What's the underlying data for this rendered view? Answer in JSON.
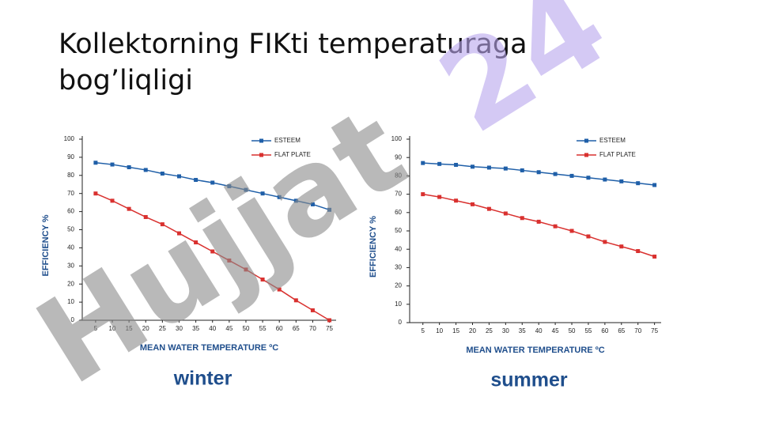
{
  "title_lines": [
    "Kollektorning FIKti temperaturaga",
    "bog’liqligi"
  ],
  "watermark": [
    "Hujjat",
    "24"
  ],
  "chart_data": [
    {
      "type": "line",
      "title": "winter",
      "xlabel": "MEAN WATER TEMPERATURE ºC",
      "ylabel": "EFFICIENCY %",
      "x": [
        5,
        10,
        15,
        20,
        25,
        30,
        35,
        40,
        45,
        50,
        55,
        60,
        65,
        70,
        75
      ],
      "series": [
        {
          "name": "ESTEEM",
          "color": "#1f5fa8",
          "values": [
            87,
            86,
            84.5,
            83,
            81,
            79.5,
            77.5,
            76,
            74,
            72,
            70,
            68,
            66,
            64,
            61
          ]
        },
        {
          "name": "FLAT PLATE",
          "color": "#d9312f",
          "values": [
            70,
            66,
            61.5,
            57,
            53,
            48,
            43,
            38,
            33,
            28,
            22.5,
            17,
            11,
            5.5,
            0
          ]
        }
      ],
      "xlim": [
        1,
        77
      ],
      "ylim": [
        0,
        100
      ],
      "xticks": [
        5,
        10,
        15,
        20,
        25,
        30,
        35,
        40,
        45,
        50,
        55,
        60,
        65,
        70,
        75
      ],
      "yticks": [
        0,
        10,
        20,
        30,
        40,
        50,
        60,
        70,
        80,
        90,
        100
      ],
      "grid": false
    },
    {
      "type": "line",
      "title": "summer",
      "xlabel": "MEAN WATER TEMPERATURE ºC",
      "ylabel": "EFFICIENCY %",
      "x": [
        5,
        10,
        15,
        20,
        25,
        30,
        35,
        40,
        45,
        50,
        55,
        60,
        65,
        70,
        75
      ],
      "series": [
        {
          "name": "ESTEEM",
          "color": "#1f5fa8",
          "values": [
            87,
            86.5,
            86,
            85,
            84.5,
            84,
            83,
            82,
            81,
            80,
            79,
            78,
            77,
            76,
            75
          ]
        },
        {
          "name": "FLAT PLATE",
          "color": "#d9312f",
          "values": [
            70,
            68.5,
            66.5,
            64.5,
            62,
            59.5,
            57,
            55,
            52.5,
            50,
            47,
            44,
            41.5,
            39,
            36
          ]
        }
      ],
      "xlim": [
        1,
        77
      ],
      "ylim": [
        0,
        100
      ],
      "xticks": [
        5,
        10,
        15,
        20,
        25,
        30,
        35,
        40,
        45,
        50,
        55,
        60,
        65,
        70,
        75
      ],
      "yticks": [
        0,
        10,
        20,
        30,
        40,
        50,
        60,
        70,
        80,
        90,
        100
      ],
      "grid": false
    }
  ]
}
